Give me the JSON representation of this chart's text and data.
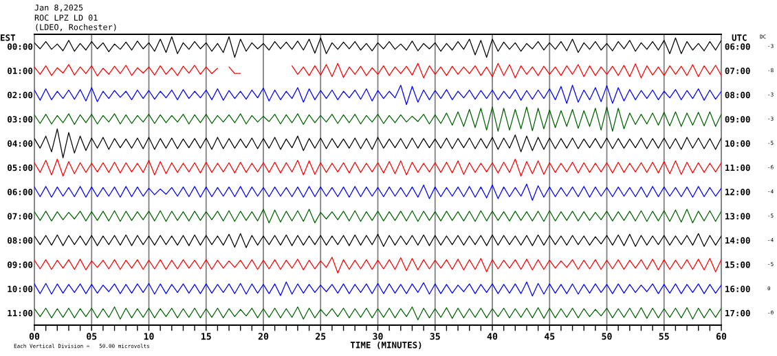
{
  "chart_data": {
    "type": "line",
    "title": "Jan 8,2025",
    "subtitle": "ROC LPZ LD 01\n(LDEO, Rochester)",
    "xlabel": "TIME (MINUTES)",
    "ylabel": "EST",
    "y2label": "UTC",
    "annotations": [
      "Each Vertical Division =   50.00 microvolts",
      "DC",
      "-3",
      "-8",
      "-3",
      "-3",
      "-5",
      "-6",
      "-4",
      "-5",
      "-4",
      "-5",
      "0",
      "-0"
    ],
    "grid": "x",
    "xlim": [
      0,
      60
    ],
    "xticks": [
      {
        "value": 0,
        "label": "00"
      },
      {
        "value": 1,
        "label": null
      },
      {
        "value": 2,
        "label": null
      },
      {
        "value": 3,
        "label": null
      },
      {
        "value": 4,
        "label": null
      },
      {
        "value": 5,
        "label": "05"
      },
      {
        "value": 6,
        "label": null
      },
      {
        "value": 7,
        "label": null
      },
      {
        "value": 8,
        "label": null
      },
      {
        "value": 9,
        "label": null
      },
      {
        "value": 10,
        "label": "10"
      },
      {
        "value": 11,
        "label": null
      },
      {
        "value": 12,
        "label": null
      },
      {
        "value": 13,
        "label": null
      },
      {
        "value": 14,
        "label": null
      },
      {
        "value": 15,
        "label": "15"
      },
      {
        "value": 16,
        "label": null
      },
      {
        "value": 17,
        "label": null
      },
      {
        "value": 18,
        "label": null
      },
      {
        "value": 19,
        "label": null
      },
      {
        "value": 20,
        "label": "20"
      },
      {
        "value": 21,
        "label": null
      },
      {
        "value": 22,
        "label": null
      },
      {
        "value": 23,
        "label": null
      },
      {
        "value": 24,
        "label": null
      },
      {
        "value": 25,
        "label": "25"
      },
      {
        "value": 26,
        "label": null
      },
      {
        "value": 27,
        "label": null
      },
      {
        "value": 28,
        "label": null
      },
      {
        "value": 29,
        "label": null
      },
      {
        "value": 30,
        "label": "30"
      },
      {
        "value": 31,
        "label": null
      },
      {
        "value": 32,
        "label": null
      },
      {
        "value": 33,
        "label": null
      },
      {
        "value": 34,
        "label": null
      },
      {
        "value": 35,
        "label": "35"
      },
      {
        "value": 36,
        "label": null
      },
      {
        "value": 37,
        "label": null
      },
      {
        "value": 38,
        "label": null
      },
      {
        "value": 39,
        "label": null
      },
      {
        "value": 40,
        "label": "40"
      },
      {
        "value": 41,
        "label": null
      },
      {
        "value": 42,
        "label": null
      },
      {
        "value": 43,
        "label": null
      },
      {
        "value": 44,
        "label": null
      },
      {
        "value": 45,
        "label": "45"
      },
      {
        "value": 46,
        "label": null
      },
      {
        "value": 47,
        "label": null
      },
      {
        "value": 48,
        "label": null
      },
      {
        "value": 49,
        "label": null
      },
      {
        "value": 50,
        "label": "50"
      },
      {
        "value": 51,
        "label": null
      },
      {
        "value": 52,
        "label": null
      },
      {
        "value": 53,
        "label": null
      },
      {
        "value": 54,
        "label": null
      },
      {
        "value": 55,
        "label": "55"
      },
      {
        "value": 56,
        "label": null
      },
      {
        "value": 57,
        "label": null
      },
      {
        "value": 58,
        "label": null
      },
      {
        "value": 59,
        "label": null
      },
      {
        "value": 60,
        "label": "60"
      }
    ],
    "ylim": [
      11.5,
      -0.5
    ],
    "yticks": [
      {
        "value": 0,
        "label": "00:00"
      },
      {
        "value": 1,
        "label": "01:00"
      },
      {
        "value": 2,
        "label": "02:00"
      },
      {
        "value": 3,
        "label": "03:00"
      },
      {
        "value": 4,
        "label": "04:00"
      },
      {
        "value": 5,
        "label": "05:00"
      },
      {
        "value": 6,
        "label": "06:00"
      },
      {
        "value": 7,
        "label": "07:00"
      },
      {
        "value": 8,
        "label": "08:00"
      },
      {
        "value": 9,
        "label": "09:00"
      },
      {
        "value": 10,
        "label": "10:00"
      },
      {
        "value": 11,
        "label": "11:00"
      }
    ],
    "y2lim": [
      17.5,
      5.5
    ],
    "y2ticks": [
      {
        "value": 6,
        "label": "06:00"
      },
      {
        "value": 7,
        "label": "07:00"
      },
      {
        "value": 8,
        "label": "08:00"
      },
      {
        "value": 9,
        "label": "09:00"
      },
      {
        "value": 10,
        "label": "10:00"
      },
      {
        "value": 11,
        "label": "11:00"
      },
      {
        "value": 12,
        "label": "12:00"
      },
      {
        "value": 13,
        "label": "13:00"
      },
      {
        "value": 14,
        "label": "14:00"
      },
      {
        "value": 15,
        "label": "15:00"
      },
      {
        "value": 16,
        "label": "16:00"
      },
      {
        "value": 17,
        "label": "17:00"
      }
    ],
    "x": [
      0,
      0.5,
      1,
      1.5,
      2,
      2.5,
      3,
      3.5,
      4,
      4.5,
      5,
      5.5,
      6,
      6.5,
      7,
      7.5,
      8,
      8.5,
      9,
      9.5,
      10,
      10.5,
      11,
      11.5,
      12,
      12.5,
      13,
      13.5,
      14,
      14.5,
      15,
      15.5,
      16,
      16.5,
      17,
      17.5,
      18,
      18.5,
      19,
      19.5,
      20,
      20.5,
      21,
      21.5,
      22,
      22.5,
      23,
      23.5,
      24,
      24.5,
      25,
      25.5,
      26,
      26.5,
      27,
      27.5,
      28,
      28.5,
      29,
      29.5,
      30,
      30.5,
      31,
      31.5,
      32,
      32.5,
      33,
      33.5,
      34,
      34.5,
      35,
      35.5,
      36,
      36.5,
      37,
      37.5,
      38,
      38.5,
      39,
      39.5,
      40,
      40.5,
      41,
      41.5,
      42,
      42.5,
      43,
      43.5,
      44,
      44.5,
      45,
      45.5,
      46,
      46.5,
      47,
      47.5,
      48,
      48.5,
      49,
      49.5,
      50,
      50.5,
      51,
      51.5,
      52,
      52.5,
      53,
      53.5,
      54,
      54.5,
      55,
      55.5,
      56,
      56.5,
      57,
      57.5,
      58,
      58.5,
      59,
      59.5,
      60
    ],
    "series": [
      {
        "color": "#000000",
        "values": [
          -0.15,
          0.1,
          -0.2,
          0.12,
          -0.1,
          0.18,
          -0.25,
          0.2,
          -0.12,
          0.15,
          -0.2,
          0.1,
          -0.15,
          0.22,
          -0.1,
          0.12,
          -0.18,
          0.15,
          -0.22,
          0.1,
          -0.15,
          0.2,
          -0.3,
          0.25,
          -0.4,
          0.3,
          -0.15,
          0.12,
          -0.2,
          0.1,
          -0.15,
          0.2,
          -0.12,
          0.25,
          -0.4,
          0.45,
          -0.3,
          0.2,
          -0.15,
          0.1,
          -0.12,
          0.15,
          -0.2,
          0.1,
          -0.18,
          0.12,
          -0.22,
          0.15,
          -0.3,
          0.28,
          -0.35,
          0.3,
          -0.15,
          0.12,
          -0.18,
          0.1,
          -0.2,
          0.15,
          -0.12,
          0.18,
          -0.15,
          0.1,
          -0.2,
          0.12,
          -0.1,
          0.15,
          -0.22,
          0.18,
          -0.12,
          0.1,
          -0.15,
          0.2,
          -0.12,
          0.15,
          -0.2,
          0.12,
          -0.3,
          0.35,
          -0.25,
          0.45,
          -0.3,
          0.2,
          -0.18,
          0.12,
          -0.15,
          0.2,
          -0.12,
          0.1,
          -0.2,
          0.15,
          -0.15,
          0.12,
          -0.2,
          0.18,
          -0.3,
          0.25,
          -0.15,
          0.12,
          -0.2,
          0.15,
          -0.12,
          0.18,
          -0.2,
          0.1,
          -0.25,
          0.2,
          -0.15,
          0.12,
          -0.2,
          0.15,
          -0.25,
          0.3,
          -0.35,
          0.3,
          -0.2,
          0.15,
          -0.12,
          0.18,
          -0.2,
          0.15,
          -0.25
        ]
      },
      {
        "color": "#ff0000",
        "values": [
          0.85,
          1.15,
          0.8,
          1.2,
          0.88,
          1.1,
          0.75,
          1.18,
          0.85,
          1.12,
          0.8,
          1.22,
          0.9,
          1.15,
          0.82,
          1.12,
          0.78,
          1.2,
          0.88,
          1.1,
          0.85,
          1.18,
          0.8,
          1.15,
          0.88,
          1.2,
          0.82,
          1.1,
          0.78,
          1.15,
          0.85,
          1.12,
          0.9,
          null,
          0.85,
          1.12,
          1.12,
          null,
          null,
          null,
          null,
          null,
          null,
          null,
          null,
          0.8,
          1.15,
          0.85,
          1.2,
          0.8,
          1.18,
          0.75,
          1.25,
          0.7,
          1.28,
          0.85,
          1.15,
          0.82,
          1.2,
          0.88,
          1.15,
          0.8,
          1.2,
          0.85,
          1.12,
          0.82,
          1.18,
          0.7,
          1.3,
          0.8,
          1.15,
          0.85,
          1.2,
          0.82,
          1.15,
          0.85,
          1.12,
          0.8,
          1.2,
          0.85,
          1.25,
          0.7,
          1.2,
          0.75,
          1.3,
          0.8,
          1.15,
          0.85,
          1.2,
          0.82,
          1.15,
          0.85,
          1.2,
          0.8,
          1.15,
          0.75,
          1.25,
          0.8,
          1.2,
          0.85,
          1.15,
          0.82,
          1.2,
          0.78,
          1.25,
          0.72,
          1.3,
          0.8,
          1.18,
          0.85,
          1.2,
          0.8,
          1.15,
          0.82,
          1.2,
          0.75,
          1.25,
          0.8,
          1.15,
          0.78,
          1.2
        ]
      },
      {
        "color": "#0000ff",
        "values": [
          1.8,
          2.22,
          1.75,
          2.2,
          1.85,
          2.15,
          1.8,
          2.18,
          1.78,
          2.25,
          1.7,
          2.28,
          1.85,
          2.15,
          1.82,
          2.1,
          1.85,
          2.2,
          1.8,
          2.15,
          1.82,
          2.18,
          1.85,
          2.12,
          1.8,
          2.2,
          1.78,
          2.15,
          1.85,
          2.12,
          1.8,
          2.2,
          1.75,
          2.22,
          1.82,
          2.15,
          1.85,
          2.18,
          1.8,
          2.12,
          1.72,
          2.25,
          1.8,
          2.2,
          1.85,
          2.15,
          1.7,
          2.3,
          1.75,
          2.2,
          1.82,
          2.15,
          1.8,
          2.2,
          1.85,
          2.12,
          1.8,
          2.18,
          1.75,
          2.25,
          1.82,
          2.15,
          1.85,
          2.12,
          1.6,
          2.4,
          1.65,
          2.3,
          1.8,
          2.2,
          1.82,
          2.15,
          1.78,
          2.2,
          1.85,
          2.12,
          1.8,
          2.18,
          1.82,
          2.15,
          1.8,
          2.2,
          1.85,
          2.15,
          1.78,
          2.22,
          1.82,
          2.18,
          1.8,
          2.15,
          1.75,
          2.2,
          1.65,
          2.35,
          1.6,
          2.3,
          1.8,
          2.2,
          1.7,
          2.28,
          1.62,
          2.35,
          1.7,
          2.25,
          1.78,
          2.2,
          1.82,
          2.15,
          1.8,
          2.2,
          1.85,
          2.12,
          1.78,
          2.2,
          1.82,
          2.15,
          1.75,
          2.22,
          1.8,
          2.18,
          1.85
        ]
      },
      {
        "color": "#006400",
        "values": [
          2.82,
          3.18,
          2.8,
          3.2,
          2.85,
          3.15,
          2.78,
          3.22,
          2.82,
          3.15,
          2.8,
          3.2,
          2.85,
          3.12,
          2.78,
          3.2,
          2.82,
          3.18,
          2.85,
          3.12,
          2.8,
          3.18,
          2.82,
          3.15,
          2.85,
          3.12,
          2.8,
          3.2,
          2.82,
          3.15,
          2.8,
          3.18,
          2.85,
          3.12,
          2.82,
          3.15,
          2.78,
          3.2,
          2.85,
          3.12,
          2.88,
          3.1,
          2.8,
          3.2,
          2.82,
          3.15,
          2.78,
          3.22,
          2.82,
          3.15,
          2.85,
          3.12,
          2.8,
          3.18,
          2.82,
          3.15,
          2.8,
          3.2,
          2.85,
          3.12,
          2.8,
          3.18,
          2.85,
          3.15,
          2.82,
          3.12,
          2.88,
          3.1,
          2.8,
          3.2,
          2.82,
          3.18,
          2.75,
          3.25,
          2.7,
          3.3,
          2.6,
          3.35,
          2.55,
          3.45,
          2.5,
          3.5,
          2.55,
          3.45,
          2.6,
          3.4,
          2.5,
          3.48,
          2.55,
          3.4,
          2.62,
          3.35,
          2.65,
          3.3,
          2.6,
          3.38,
          2.65,
          3.3,
          2.55,
          3.45,
          2.5,
          3.5,
          2.55,
          3.4,
          2.75,
          3.22,
          2.8,
          3.2,
          2.75,
          3.25,
          2.72,
          3.28,
          2.7,
          3.3,
          2.75,
          3.25,
          2.72,
          3.28,
          2.7,
          3.3,
          2.8
        ]
      },
      {
        "color": "#000000",
        "values": [
          3.8,
          4.2,
          3.7,
          4.35,
          3.4,
          4.6,
          3.55,
          4.4,
          3.7,
          4.3,
          3.78,
          4.2,
          3.75,
          4.25,
          3.8,
          4.18,
          3.82,
          4.2,
          3.78,
          4.22,
          3.75,
          4.25,
          3.8,
          4.2,
          3.78,
          4.22,
          3.82,
          4.18,
          3.8,
          4.2,
          3.78,
          4.25,
          3.75,
          4.22,
          3.8,
          4.2,
          3.82,
          4.18,
          3.78,
          4.22,
          3.8,
          4.2,
          3.75,
          4.25,
          3.82,
          4.18,
          3.7,
          4.3,
          3.8,
          4.2,
          3.78,
          4.22,
          3.8,
          4.18,
          3.82,
          4.2,
          3.78,
          4.22,
          3.8,
          4.25,
          3.75,
          4.2,
          3.82,
          4.18,
          3.8,
          4.22,
          3.78,
          4.2,
          3.8,
          4.18,
          3.82,
          4.2,
          3.78,
          4.22,
          3.8,
          4.18,
          3.78,
          4.22,
          3.8,
          4.2,
          3.75,
          4.25,
          3.78,
          4.2,
          3.65,
          4.35,
          3.7,
          4.3,
          3.75,
          4.25,
          3.78,
          4.22,
          3.8,
          4.2,
          3.78,
          4.22,
          3.82,
          4.18,
          3.8,
          4.2,
          3.78,
          4.22,
          3.8,
          4.2,
          3.82,
          4.18,
          3.78,
          4.22,
          3.8,
          4.2,
          3.78,
          4.22,
          3.8,
          4.25,
          3.75,
          4.2,
          3.78,
          4.22,
          3.8,
          4.25,
          3.78
        ]
      },
      {
        "color": "#ff0000",
        "values": [
          4.8,
          5.2,
          4.7,
          5.3,
          4.65,
          5.35,
          4.75,
          5.25,
          4.8,
          5.2,
          4.82,
          5.18,
          4.8,
          5.2,
          4.78,
          5.22,
          4.8,
          5.18,
          4.82,
          5.2,
          4.7,
          5.3,
          4.75,
          5.25,
          4.8,
          5.2,
          4.82,
          5.18,
          4.8,
          5.22,
          4.78,
          5.2,
          4.82,
          5.18,
          4.8,
          5.22,
          4.78,
          5.2,
          4.82,
          5.18,
          4.8,
          5.2,
          4.78,
          5.22,
          4.8,
          5.18,
          4.7,
          5.3,
          4.72,
          5.28,
          4.8,
          5.2,
          4.82,
          5.18,
          4.8,
          5.22,
          4.78,
          5.2,
          4.82,
          5.18,
          4.8,
          5.22,
          4.75,
          5.25,
          4.72,
          5.3,
          4.78,
          5.2,
          4.82,
          5.18,
          4.8,
          5.2,
          4.78,
          5.22,
          4.72,
          5.28,
          4.8,
          5.2,
          4.82,
          5.18,
          4.8,
          5.22,
          4.78,
          5.2,
          4.65,
          5.35,
          4.75,
          5.25,
          4.72,
          5.28,
          4.8,
          5.2,
          4.82,
          5.18,
          4.78,
          5.22,
          4.8,
          5.2,
          4.82,
          5.18,
          4.8,
          5.22,
          4.78,
          5.2,
          4.82,
          5.18,
          4.8,
          5.2,
          4.78,
          5.22,
          4.75,
          5.25,
          4.72,
          5.28,
          4.78,
          5.22,
          4.8,
          5.2,
          4.82,
          5.18,
          4.8
        ]
      },
      {
        "color": "#0000ff",
        "values": [
          5.8,
          6.2,
          5.78,
          6.22,
          5.8,
          6.18,
          5.82,
          6.2,
          5.78,
          6.22,
          5.8,
          6.2,
          5.82,
          6.18,
          5.8,
          6.22,
          5.78,
          6.2,
          5.8,
          6.18,
          5.85,
          6.12,
          5.88,
          6.1,
          5.82,
          6.18,
          5.8,
          6.2,
          5.78,
          6.22,
          5.8,
          6.2,
          5.82,
          6.18,
          5.8,
          6.2,
          5.78,
          6.22,
          5.8,
          6.18,
          5.82,
          6.2,
          5.8,
          6.18,
          5.82,
          6.2,
          5.8,
          6.22,
          5.78,
          6.2,
          5.8,
          6.18,
          5.82,
          6.2,
          5.8,
          6.22,
          5.78,
          6.2,
          5.8,
          6.18,
          5.82,
          6.2,
          5.8,
          6.18,
          5.82,
          6.2,
          5.8,
          6.22,
          5.72,
          6.28,
          5.8,
          6.2,
          5.82,
          6.18,
          5.8,
          6.2,
          5.78,
          6.22,
          5.8,
          6.25,
          5.72,
          6.28,
          5.8,
          6.2,
          5.82,
          6.18,
          5.68,
          6.35,
          5.75,
          6.22,
          5.8,
          6.2,
          5.82,
          6.18,
          5.8,
          6.2,
          5.78,
          6.22,
          5.8,
          6.18,
          5.82,
          6.2,
          5.8,
          6.18,
          5.82,
          6.2,
          5.8,
          6.22,
          5.78,
          6.2,
          5.8,
          6.18,
          5.82,
          6.2,
          5.8,
          6.22,
          5.78,
          6.2,
          5.82,
          6.18,
          5.85
        ]
      },
      {
        "color": "#006400",
        "values": [
          6.82,
          7.18,
          6.8,
          7.2,
          6.82,
          7.15,
          6.85,
          7.12,
          6.8,
          7.2,
          6.82,
          7.18,
          6.8,
          7.2,
          6.78,
          7.22,
          6.8,
          7.18,
          6.82,
          7.15,
          6.8,
          7.2,
          6.78,
          7.22,
          6.8,
          7.18,
          6.82,
          7.2,
          6.8,
          7.18,
          6.82,
          7.15,
          6.8,
          7.2,
          6.78,
          7.22,
          6.8,
          7.18,
          6.82,
          7.2,
          6.72,
          7.28,
          6.75,
          7.25,
          6.8,
          7.2,
          6.78,
          7.22,
          6.72,
          7.28,
          6.85,
          7.12,
          6.82,
          7.15,
          6.8,
          7.2,
          6.78,
          7.22,
          6.82,
          7.18,
          6.8,
          7.2,
          6.82,
          7.18,
          6.8,
          7.2,
          6.78,
          7.22,
          6.8,
          7.18,
          6.82,
          7.2,
          6.8,
          7.18,
          6.82,
          7.2,
          6.8,
          7.22,
          6.78,
          7.2,
          6.8,
          7.18,
          6.82,
          7.2,
          6.8,
          7.18,
          6.82,
          7.2,
          6.8,
          7.22,
          6.78,
          7.2,
          6.82,
          7.18,
          6.8,
          7.2,
          6.82,
          7.18,
          6.85,
          7.15,
          6.8,
          7.2,
          6.82,
          7.18,
          6.8,
          7.2,
          6.78,
          7.22,
          6.8,
          7.2,
          6.78,
          7.22,
          6.75,
          7.25,
          6.72,
          7.28,
          6.8,
          7.2,
          6.78,
          7.22,
          6.8
        ]
      },
      {
        "color": "#000000",
        "values": [
          7.82,
          8.18,
          7.8,
          8.2,
          7.78,
          8.22,
          7.8,
          8.18,
          7.82,
          8.2,
          7.8,
          8.22,
          7.82,
          8.18,
          7.8,
          8.2,
          7.78,
          8.22,
          7.8,
          8.18,
          7.82,
          8.2,
          7.8,
          8.18,
          7.82,
          8.2,
          7.8,
          8.22,
          7.78,
          8.2,
          7.8,
          8.18,
          7.82,
          8.2,
          7.75,
          8.28,
          7.72,
          8.3,
          7.8,
          8.2,
          7.82,
          8.18,
          7.8,
          8.2,
          7.78,
          8.22,
          7.8,
          8.2,
          7.82,
          8.18,
          7.8,
          8.2,
          7.82,
          8.18,
          7.8,
          8.22,
          7.78,
          8.2,
          7.8,
          8.18,
          7.75,
          8.25,
          7.8,
          8.2,
          7.82,
          8.18,
          7.8,
          8.2,
          7.78,
          8.22,
          7.8,
          8.2,
          7.82,
          8.18,
          7.8,
          8.2,
          7.82,
          8.18,
          7.8,
          8.22,
          7.78,
          8.2,
          7.8,
          8.18,
          7.82,
          8.2,
          7.8,
          8.22,
          7.78,
          8.2,
          7.8,
          8.18,
          7.82,
          8.2,
          7.8,
          8.18,
          7.82,
          8.2,
          7.85,
          8.15,
          7.8,
          8.2,
          7.78,
          8.22,
          7.75,
          8.25,
          7.8,
          8.2,
          7.82,
          8.18,
          7.8,
          8.2,
          7.82,
          8.18,
          7.8,
          8.2,
          7.72,
          8.25,
          7.8,
          8.2,
          7.82
        ]
      },
      {
        "color": "#ff0000",
        "values": [
          8.82,
          9.18,
          8.8,
          9.2,
          8.82,
          9.15,
          8.8,
          9.2,
          8.78,
          9.22,
          8.85,
          9.12,
          8.82,
          9.18,
          8.8,
          9.2,
          8.82,
          9.15,
          8.8,
          9.2,
          8.82,
          9.18,
          8.8,
          9.2,
          8.82,
          9.18,
          8.8,
          9.15,
          8.82,
          9.18,
          8.8,
          9.2,
          8.82,
          9.15,
          8.85,
          9.12,
          8.82,
          9.18,
          8.8,
          9.2,
          8.82,
          9.18,
          8.8,
          9.2,
          8.82,
          9.15,
          8.78,
          9.22,
          8.82,
          9.18,
          8.85,
          9.12,
          8.7,
          9.35,
          8.8,
          9.2,
          8.82,
          9.18,
          8.8,
          9.2,
          8.82,
          9.18,
          8.8,
          9.2,
          8.72,
          9.25,
          8.75,
          9.22,
          8.8,
          9.18,
          8.82,
          9.15,
          8.8,
          9.2,
          8.78,
          9.22,
          8.8,
          9.2,
          8.75,
          9.3,
          8.8,
          9.18,
          8.82,
          9.15,
          8.8,
          9.2,
          8.78,
          9.22,
          8.8,
          9.2,
          8.82,
          9.15,
          8.85,
          9.12,
          8.8,
          9.2,
          8.82,
          9.18,
          8.8,
          9.2,
          8.82,
          9.18,
          8.8,
          9.2,
          8.82,
          9.15,
          8.8,
          9.2,
          8.78,
          9.22,
          8.8,
          9.2,
          8.82,
          9.18,
          8.8,
          9.2,
          8.78,
          9.22,
          8.75,
          9.3,
          8.8
        ]
      },
      {
        "color": "#0000ff",
        "values": [
          9.8,
          10.2,
          9.78,
          10.22,
          9.8,
          10.18,
          9.82,
          10.15,
          9.8,
          10.2,
          9.82,
          10.18,
          9.85,
          10.12,
          9.8,
          10.2,
          9.82,
          10.18,
          9.8,
          10.15,
          9.78,
          10.22,
          9.8,
          10.2,
          9.82,
          10.15,
          9.8,
          10.18,
          9.82,
          10.2,
          9.8,
          10.18,
          9.82,
          10.15,
          9.8,
          10.2,
          9.78,
          10.22,
          9.8,
          10.18,
          9.82,
          10.2,
          9.8,
          10.28,
          9.72,
          10.22,
          9.8,
          10.18,
          9.82,
          10.15,
          9.85,
          10.12,
          9.82,
          10.18,
          9.8,
          10.2,
          9.82,
          10.15,
          9.8,
          10.2,
          9.78,
          10.2,
          9.8,
          10.18,
          9.82,
          10.2,
          9.8,
          10.15,
          9.75,
          10.22,
          9.8,
          10.2,
          9.82,
          10.18,
          9.85,
          10.12,
          9.8,
          10.2,
          9.82,
          10.15,
          9.8,
          10.2,
          9.82,
          10.18,
          9.8,
          10.2,
          9.72,
          10.3,
          9.78,
          10.22,
          9.8,
          10.18,
          9.82,
          10.2,
          9.8,
          10.22,
          9.82,
          10.18,
          9.8,
          10.15,
          9.82,
          10.2,
          9.8,
          10.18,
          9.82,
          10.15,
          9.85,
          10.12,
          9.8,
          10.2,
          9.82,
          10.18,
          9.8,
          10.2,
          9.82,
          10.15,
          9.8,
          10.2,
          9.82,
          10.18,
          9.85
        ]
      },
      {
        "color": "#006400",
        "values": [
          10.82,
          11.15,
          10.8,
          11.2,
          10.82,
          11.18,
          10.8,
          11.2,
          10.82,
          11.15,
          10.8,
          11.2,
          10.82,
          11.18,
          10.75,
          11.25,
          10.8,
          11.2,
          10.82,
          11.18,
          10.8,
          11.2,
          10.82,
          11.15,
          10.8,
          11.2,
          10.82,
          11.18,
          10.8,
          11.2,
          10.82,
          11.18,
          10.8,
          11.2,
          10.82,
          11.15,
          10.85,
          11.12,
          10.8,
          11.2,
          10.82,
          11.18,
          10.8,
          11.2,
          10.82,
          11.18,
          10.75,
          11.25,
          10.8,
          11.2,
          10.85,
          11.12,
          10.82,
          11.15,
          10.8,
          11.2,
          10.82,
          11.18,
          10.8,
          11.2,
          10.82,
          11.18,
          10.8,
          11.2,
          10.82,
          11.15,
          10.75,
          11.28,
          10.8,
          11.2,
          10.82,
          11.18,
          10.78,
          11.22,
          10.8,
          11.2,
          10.82,
          11.18,
          10.8,
          11.2,
          10.82,
          11.15,
          10.8,
          11.2,
          10.82,
          11.18,
          10.8,
          11.2,
          10.78,
          11.22,
          10.8,
          11.2,
          10.82,
          11.18,
          10.8,
          11.2,
          10.82,
          11.15,
          10.85,
          11.12,
          10.8,
          11.2,
          10.82,
          11.18,
          10.8,
          11.2,
          10.78,
          11.22,
          10.8,
          11.2,
          10.82,
          11.18,
          10.8,
          11.2,
          10.78,
          11.25,
          10.8,
          11.2,
          10.82,
          11.18,
          10.8
        ]
      }
    ]
  }
}
